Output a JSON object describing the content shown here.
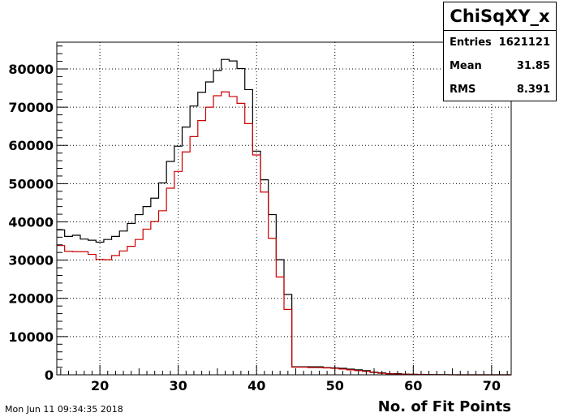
{
  "stats": {
    "title": "ChiSqXY_x",
    "rows": [
      {
        "label": "Entries",
        "value": "1621121"
      },
      {
        "label": "Mean",
        "value": "31.85"
      },
      {
        "label": "RMS",
        "value": "8.391"
      }
    ]
  },
  "footer": {
    "datetime": "Mon Jun 11 09:34:35 2018"
  },
  "chart_data": {
    "type": "histogram-step",
    "title": "",
    "xlabel": "No. of Fit Points",
    "ylabel": "",
    "xlim": [
      14.5,
      72.5
    ],
    "ylim": [
      0,
      87000
    ],
    "xticks": [
      20,
      30,
      40,
      50,
      60,
      70
    ],
    "yticks": [
      0,
      10000,
      20000,
      30000,
      40000,
      50000,
      60000,
      70000,
      80000
    ],
    "grid": true,
    "bin_edges_start": 14.5,
    "bin_width": 1,
    "series": [
      {
        "color": "#000000",
        "values": [
          37900,
          36200,
          36500,
          35500,
          35200,
          34700,
          35400,
          36200,
          37600,
          39600,
          41900,
          44000,
          46200,
          50200,
          55800,
          59800,
          64800,
          70300,
          73900,
          76600,
          79600,
          82500,
          82100,
          80100,
          74600,
          58500,
          51000,
          41900,
          30100,
          21000,
          2100,
          2100,
          2100,
          2100,
          1900,
          1800,
          1700,
          1500,
          1300,
          1100,
          700,
          500,
          300,
          300,
          200,
          150,
          100,
          50,
          30,
          20,
          10,
          5,
          5,
          3,
          2,
          1,
          1,
          1
        ]
      },
      {
        "color": "#cc0000",
        "values": [
          33800,
          32300,
          32200,
          32200,
          31500,
          30200,
          30100,
          31200,
          32400,
          33600,
          35400,
          38100,
          40100,
          42900,
          48800,
          53200,
          58300,
          62300,
          66500,
          70000,
          73000,
          74000,
          72800,
          71000,
          65700,
          57500,
          47800,
          35700,
          25600,
          17100,
          2000,
          2000,
          1900,
          1900,
          1800,
          1700,
          1500,
          1300,
          1100,
          900,
          600,
          400,
          250,
          200,
          150,
          100,
          80,
          40,
          20,
          10,
          5,
          3,
          2,
          1,
          1,
          1,
          1,
          1
        ]
      }
    ]
  }
}
